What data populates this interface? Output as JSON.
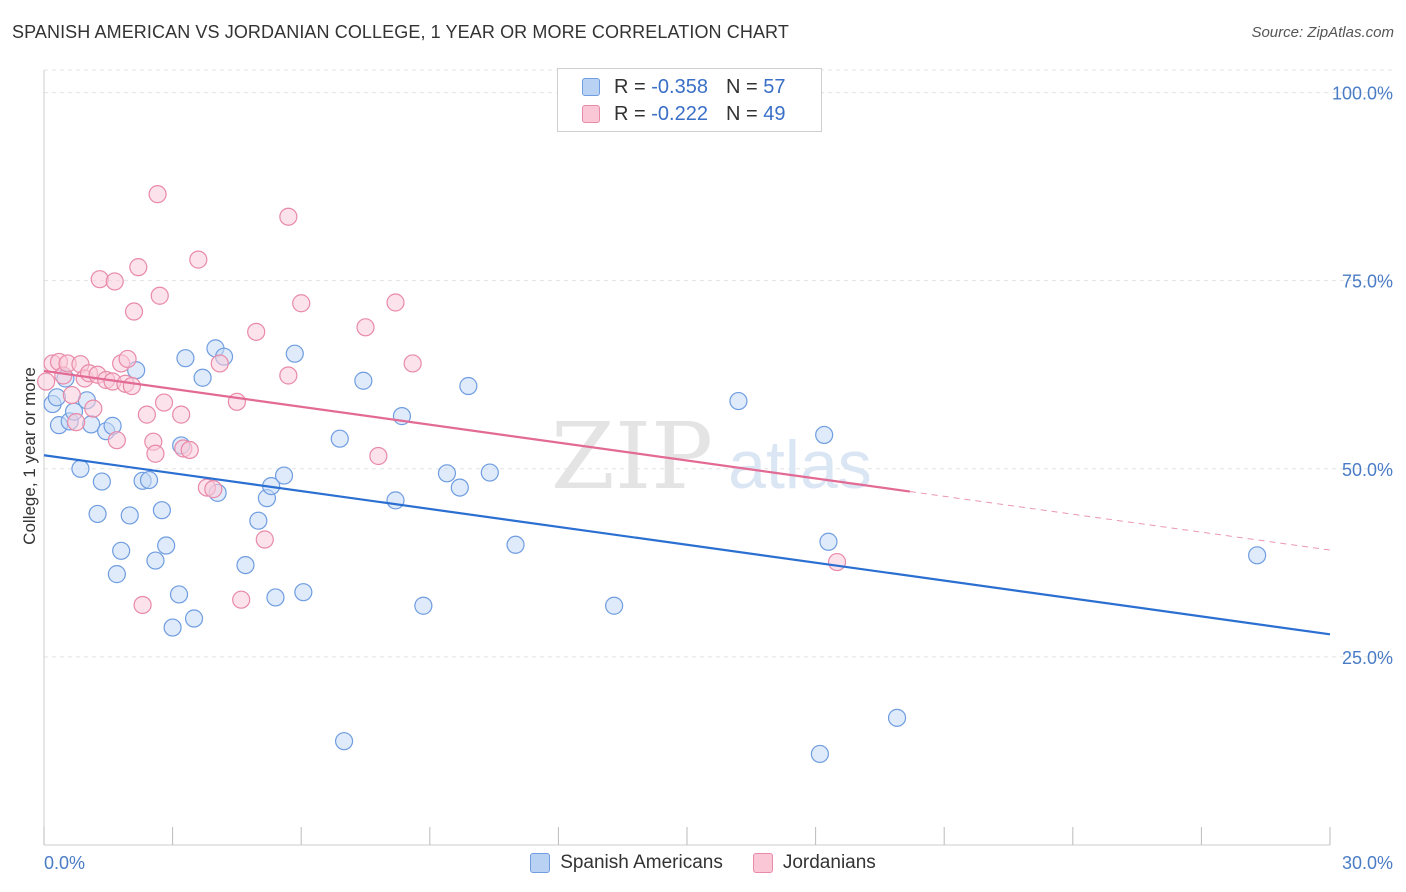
{
  "title": "SPANISH AMERICAN VS JORDANIAN COLLEGE, 1 YEAR OR MORE CORRELATION CHART",
  "source": "Source: ZipAtlas.com",
  "watermark": {
    "zip": "ZIP",
    "atlas": "atlas"
  },
  "legend": {
    "rows": [
      {
        "r_label": "R = ",
        "r_value": "-0.358",
        "n_label": "N = ",
        "n_value": "57",
        "color": "#b9d1f3",
        "border": "#6f9de0"
      },
      {
        "r_label": "R = ",
        "r_value": "-0.222",
        "n_label": "N = ",
        "n_value": "49",
        "color": "#f9c7d6",
        "border": "#e88aa8"
      }
    ]
  },
  "bottom_legend": [
    {
      "label": "Spanish Americans",
      "color": "#b9d1f3",
      "border": "#6f9de0"
    },
    {
      "label": "Jordanians",
      "color": "#f9c7d6",
      "border": "#e88aa8"
    }
  ],
  "chart_data": {
    "type": "scatter",
    "title": "SPANISH AMERICAN VS JORDANIAN COLLEGE, 1 YEAR OR MORE CORRELATION CHART",
    "xlabel": "",
    "ylabel": "College, 1 year or more",
    "xlim": [
      0,
      30
    ],
    "ylim": [
      0,
      103
    ],
    "x_tick_labels": [
      "0.0%",
      "30.0%"
    ],
    "y_ticks": [
      25,
      50,
      75,
      100
    ],
    "y_tick_labels": [
      "25.0%",
      "50.0%",
      "75.0%",
      "100.0%"
    ],
    "grid": true,
    "legend_position": "top-center",
    "series": [
      {
        "name": "Spanish Americans",
        "color": "#6f9de0",
        "fill": "#c5d9f5",
        "line_color": "#2a6fd1",
        "trend": {
          "x": [
            0,
            30
          ],
          "y": [
            51.8,
            28.0
          ],
          "dashed_from": null
        },
        "points": [
          [
            0.2,
            58.6
          ],
          [
            0.3,
            59.5
          ],
          [
            0.35,
            55.8
          ],
          [
            0.5,
            62.0
          ],
          [
            0.6,
            56.3
          ],
          [
            0.7,
            57.6
          ],
          [
            0.85,
            50.0
          ],
          [
            1.0,
            59.1
          ],
          [
            1.1,
            55.9
          ],
          [
            1.25,
            44.0
          ],
          [
            1.35,
            48.3
          ],
          [
            1.45,
            55.0
          ],
          [
            1.6,
            55.7
          ],
          [
            1.7,
            36.0
          ],
          [
            1.8,
            39.1
          ],
          [
            2.0,
            43.8
          ],
          [
            2.15,
            63.1
          ],
          [
            2.3,
            48.4
          ],
          [
            2.45,
            48.5
          ],
          [
            2.6,
            37.8
          ],
          [
            2.75,
            44.5
          ],
          [
            2.85,
            39.8
          ],
          [
            3.0,
            28.9
          ],
          [
            3.15,
            33.3
          ],
          [
            3.2,
            53.1
          ],
          [
            3.3,
            64.7
          ],
          [
            3.5,
            30.1
          ],
          [
            3.7,
            62.1
          ],
          [
            4.0,
            66.0
          ],
          [
            4.05,
            46.8
          ],
          [
            4.2,
            64.9
          ],
          [
            4.7,
            37.2
          ],
          [
            5.0,
            43.1
          ],
          [
            5.2,
            46.1
          ],
          [
            5.3,
            47.7
          ],
          [
            5.4,
            32.9
          ],
          [
            5.6,
            49.1
          ],
          [
            5.85,
            65.3
          ],
          [
            6.05,
            33.6
          ],
          [
            6.9,
            54.0
          ],
          [
            7.0,
            13.8
          ],
          [
            7.45,
            61.7
          ],
          [
            8.2,
            45.8
          ],
          [
            8.35,
            57.0
          ],
          [
            8.85,
            31.8
          ],
          [
            9.4,
            49.4
          ],
          [
            9.7,
            47.5
          ],
          [
            9.9,
            61.0
          ],
          [
            10.4,
            49.5
          ],
          [
            11.0,
            39.9
          ],
          [
            13.3,
            31.8
          ],
          [
            16.2,
            59.0
          ],
          [
            18.2,
            54.5
          ],
          [
            18.3,
            40.3
          ],
          [
            18.1,
            12.1
          ],
          [
            19.9,
            16.9
          ],
          [
            28.3,
            38.5
          ]
        ]
      },
      {
        "name": "Jordanians",
        "color": "#e88aa8",
        "fill": "#f9cbd8",
        "line_color": "#e26a94",
        "trend": {
          "x": [
            0,
            30
          ],
          "y": [
            63.0,
            39.2
          ],
          "dashed_from": 20.2
        },
        "points": [
          [
            0.2,
            64.0
          ],
          [
            0.35,
            64.2
          ],
          [
            0.45,
            62.4
          ],
          [
            0.55,
            64.0
          ],
          [
            0.65,
            59.8
          ],
          [
            0.75,
            56.2
          ],
          [
            0.85,
            63.9
          ],
          [
            0.95,
            62.0
          ],
          [
            1.05,
            62.7
          ],
          [
            1.15,
            58.0
          ],
          [
            1.25,
            62.5
          ],
          [
            1.3,
            75.2
          ],
          [
            1.45,
            61.8
          ],
          [
            1.6,
            61.6
          ],
          [
            1.65,
            74.9
          ],
          [
            1.7,
            53.8
          ],
          [
            1.8,
            64.0
          ],
          [
            1.9,
            61.3
          ],
          [
            1.95,
            64.6
          ],
          [
            2.05,
            61.0
          ],
          [
            2.1,
            70.9
          ],
          [
            2.2,
            76.8
          ],
          [
            2.3,
            31.9
          ],
          [
            2.4,
            57.2
          ],
          [
            2.55,
            53.6
          ],
          [
            2.6,
            52.0
          ],
          [
            2.65,
            86.5
          ],
          [
            2.7,
            73.0
          ],
          [
            2.8,
            58.8
          ],
          [
            3.2,
            57.2
          ],
          [
            3.25,
            52.7
          ],
          [
            3.4,
            52.5
          ],
          [
            3.6,
            77.8
          ],
          [
            3.8,
            47.5
          ],
          [
            3.95,
            47.3
          ],
          [
            4.1,
            64.0
          ],
          [
            4.5,
            58.9
          ],
          [
            4.6,
            32.6
          ],
          [
            4.95,
            68.2
          ],
          [
            5.15,
            40.6
          ],
          [
            5.7,
            62.4
          ],
          [
            5.7,
            83.5
          ],
          [
            6.0,
            72.0
          ],
          [
            7.5,
            68.8
          ],
          [
            7.8,
            51.7
          ],
          [
            8.2,
            72.1
          ],
          [
            8.6,
            64.0
          ],
          [
            18.5,
            37.6
          ],
          [
            0.05,
            61.6
          ]
        ]
      }
    ]
  }
}
